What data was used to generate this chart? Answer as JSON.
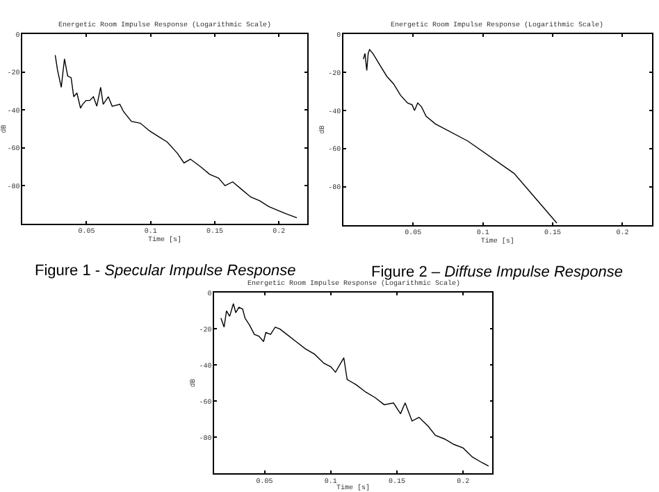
{
  "chart_data": [
    {
      "type": "line",
      "title": "Energetic Room Impulse Response (Logarithmic Scale)",
      "xlabel": "Time [s]",
      "ylabel": "dB",
      "xlim": [
        0,
        0.222
      ],
      "ylim": [
        -100,
        0
      ],
      "xticks": [
        0.05,
        0.1,
        0.15,
        0.2
      ],
      "yticks": [
        0,
        -20,
        -40,
        -60,
        -80
      ],
      "color": "#000000",
      "x": [
        0.0256,
        0.0274,
        0.0303,
        0.0328,
        0.0353,
        0.038,
        0.04,
        0.0425,
        0.0453,
        0.047,
        0.0496,
        0.0525,
        0.0554,
        0.058,
        0.061,
        0.063,
        0.067,
        0.07,
        0.076,
        0.079,
        0.085,
        0.092,
        0.099,
        0.106,
        0.113,
        0.121,
        0.126,
        0.131,
        0.139,
        0.146,
        0.153,
        0.158,
        0.164,
        0.171,
        0.178,
        0.185,
        0.192,
        0.199,
        0.206,
        0.214
      ],
      "values": [
        -11,
        -19,
        -28,
        -13,
        -22,
        -23,
        -33,
        -31,
        -39,
        -37,
        -35,
        -35,
        -33,
        -38,
        -28,
        -37,
        -33,
        -38,
        -37,
        -41,
        -46,
        -47,
        -51,
        -54,
        -57,
        -63,
        -68,
        -66,
        -70,
        -74,
        -76,
        -80,
        -78,
        -82,
        -86,
        -88,
        -91,
        -93,
        -95,
        -97
      ],
      "annotations": [
        "Figure 1 - Specular Impulse Response"
      ]
    },
    {
      "type": "line",
      "title": "Energetic Room Impulse Response (Logarithmic Scale)",
      "xlabel": "Time [s]",
      "ylabel": "dB",
      "xlim": [
        0,
        0.221
      ],
      "ylim": [
        -100,
        0
      ],
      "xticks": [
        0.05,
        0.1,
        0.15,
        0.2
      ],
      "yticks": [
        0,
        -20,
        -40,
        -60,
        -80
      ],
      "color": "#000000",
      "x": [
        0.0144,
        0.0155,
        0.0168,
        0.0178,
        0.0188,
        0.0211,
        0.0228,
        0.0261,
        0.0311,
        0.036,
        0.041,
        0.046,
        0.0493,
        0.051,
        0.0533,
        0.056,
        0.0593,
        0.066,
        0.0892,
        0.1224,
        0.153
      ],
      "values": [
        -13,
        -10,
        -19,
        -10,
        -8,
        -10,
        -12,
        -16,
        -22,
        -26,
        -32,
        -36,
        -37,
        -40,
        -36,
        -38,
        -43,
        -47,
        -56,
        -73,
        -99
      ],
      "annotations": [
        "Figure 2 – Diffuse Impulse Response"
      ]
    },
    {
      "type": "line",
      "title": "Energetic Room Impulse Response (Logarithmic Scale)",
      "xlabel": "Time [s]",
      "ylabel": "dB",
      "xlim": [
        0.012,
        0.222
      ],
      "ylim": [
        -100,
        0
      ],
      "xticks": [
        0.05,
        0.1,
        0.15,
        0.2
      ],
      "yticks": [
        0,
        -20,
        -40,
        -60,
        -80
      ],
      "color": "#000000",
      "x": [
        0.0171,
        0.0195,
        0.0213,
        0.0237,
        0.0265,
        0.0283,
        0.0307,
        0.0335,
        0.0353,
        0.0388,
        0.0423,
        0.0458,
        0.0493,
        0.051,
        0.0546,
        0.0581,
        0.0616,
        0.0668,
        0.0738,
        0.0808,
        0.0878,
        0.0948,
        0.1001,
        0.1036,
        0.1099,
        0.1124,
        0.1194,
        0.1264,
        0.1334,
        0.1404,
        0.1474,
        0.1527,
        0.1562,
        0.1614,
        0.1667,
        0.1737,
        0.179,
        0.186,
        0.193,
        0.2,
        0.207,
        0.214,
        0.2192
      ],
      "values": [
        -14,
        -19,
        -10,
        -13,
        -6,
        -11,
        -8,
        -9,
        -14,
        -18,
        -23,
        -24,
        -27,
        -22,
        -23,
        -19,
        -20,
        -23,
        -27,
        -31,
        -34,
        -39,
        -41,
        -44,
        -36,
        -48,
        -51,
        -55,
        -58,
        -62,
        -61,
        -67,
        -61,
        -71,
        -69,
        -74,
        -79,
        -81,
        -84,
        -86,
        -91,
        -94,
        -96
      ]
    }
  ]
}
